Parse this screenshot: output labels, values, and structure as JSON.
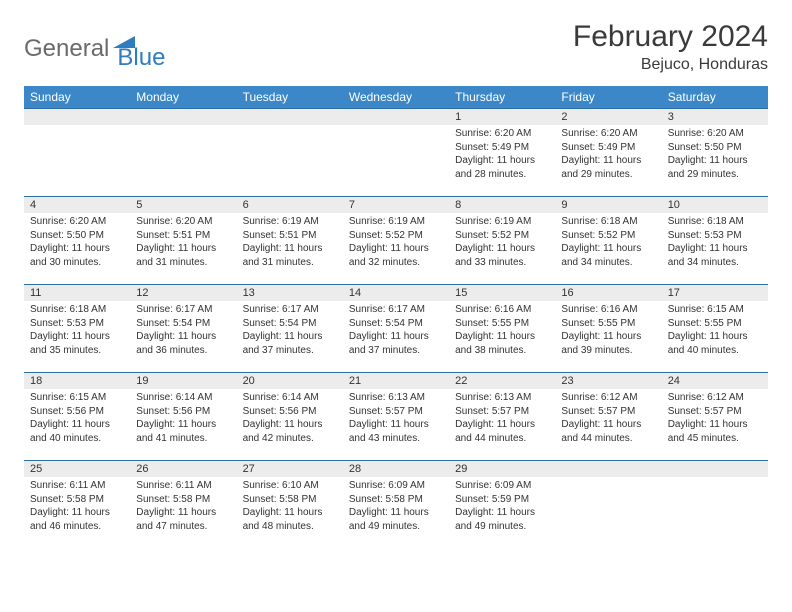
{
  "logo": {
    "text1": "General",
    "text2": "Blue"
  },
  "title": "February 2024",
  "location": "Bejuco, Honduras",
  "colors": {
    "header_bg": "#3b87c8",
    "header_text": "#ffffff",
    "row_divider": "#2d6da3",
    "daynum_bg": "#ececec",
    "text": "#333333",
    "logo_gray": "#6a6a6a",
    "logo_blue": "#2d7dc0",
    "page_bg": "#ffffff"
  },
  "typography": {
    "title_fontsize": 30,
    "location_fontsize": 16,
    "header_fontsize": 12,
    "daynum_fontsize": 11,
    "body_fontsize": 10
  },
  "weekdays": [
    "Sunday",
    "Monday",
    "Tuesday",
    "Wednesday",
    "Thursday",
    "Friday",
    "Saturday"
  ],
  "weeks": [
    [
      {
        "empty": true
      },
      {
        "empty": true
      },
      {
        "empty": true
      },
      {
        "empty": true
      },
      {
        "num": "1",
        "sunrise": "Sunrise: 6:20 AM",
        "sunset": "Sunset: 5:49 PM",
        "daylight": "Daylight: 11 hours and 28 minutes."
      },
      {
        "num": "2",
        "sunrise": "Sunrise: 6:20 AM",
        "sunset": "Sunset: 5:49 PM",
        "daylight": "Daylight: 11 hours and 29 minutes."
      },
      {
        "num": "3",
        "sunrise": "Sunrise: 6:20 AM",
        "sunset": "Sunset: 5:50 PM",
        "daylight": "Daylight: 11 hours and 29 minutes."
      }
    ],
    [
      {
        "num": "4",
        "sunrise": "Sunrise: 6:20 AM",
        "sunset": "Sunset: 5:50 PM",
        "daylight": "Daylight: 11 hours and 30 minutes."
      },
      {
        "num": "5",
        "sunrise": "Sunrise: 6:20 AM",
        "sunset": "Sunset: 5:51 PM",
        "daylight": "Daylight: 11 hours and 31 minutes."
      },
      {
        "num": "6",
        "sunrise": "Sunrise: 6:19 AM",
        "sunset": "Sunset: 5:51 PM",
        "daylight": "Daylight: 11 hours and 31 minutes."
      },
      {
        "num": "7",
        "sunrise": "Sunrise: 6:19 AM",
        "sunset": "Sunset: 5:52 PM",
        "daylight": "Daylight: 11 hours and 32 minutes."
      },
      {
        "num": "8",
        "sunrise": "Sunrise: 6:19 AM",
        "sunset": "Sunset: 5:52 PM",
        "daylight": "Daylight: 11 hours and 33 minutes."
      },
      {
        "num": "9",
        "sunrise": "Sunrise: 6:18 AM",
        "sunset": "Sunset: 5:52 PM",
        "daylight": "Daylight: 11 hours and 34 minutes."
      },
      {
        "num": "10",
        "sunrise": "Sunrise: 6:18 AM",
        "sunset": "Sunset: 5:53 PM",
        "daylight": "Daylight: 11 hours and 34 minutes."
      }
    ],
    [
      {
        "num": "11",
        "sunrise": "Sunrise: 6:18 AM",
        "sunset": "Sunset: 5:53 PM",
        "daylight": "Daylight: 11 hours and 35 minutes."
      },
      {
        "num": "12",
        "sunrise": "Sunrise: 6:17 AM",
        "sunset": "Sunset: 5:54 PM",
        "daylight": "Daylight: 11 hours and 36 minutes."
      },
      {
        "num": "13",
        "sunrise": "Sunrise: 6:17 AM",
        "sunset": "Sunset: 5:54 PM",
        "daylight": "Daylight: 11 hours and 37 minutes."
      },
      {
        "num": "14",
        "sunrise": "Sunrise: 6:17 AM",
        "sunset": "Sunset: 5:54 PM",
        "daylight": "Daylight: 11 hours and 37 minutes."
      },
      {
        "num": "15",
        "sunrise": "Sunrise: 6:16 AM",
        "sunset": "Sunset: 5:55 PM",
        "daylight": "Daylight: 11 hours and 38 minutes."
      },
      {
        "num": "16",
        "sunrise": "Sunrise: 6:16 AM",
        "sunset": "Sunset: 5:55 PM",
        "daylight": "Daylight: 11 hours and 39 minutes."
      },
      {
        "num": "17",
        "sunrise": "Sunrise: 6:15 AM",
        "sunset": "Sunset: 5:55 PM",
        "daylight": "Daylight: 11 hours and 40 minutes."
      }
    ],
    [
      {
        "num": "18",
        "sunrise": "Sunrise: 6:15 AM",
        "sunset": "Sunset: 5:56 PM",
        "daylight": "Daylight: 11 hours and 40 minutes."
      },
      {
        "num": "19",
        "sunrise": "Sunrise: 6:14 AM",
        "sunset": "Sunset: 5:56 PM",
        "daylight": "Daylight: 11 hours and 41 minutes."
      },
      {
        "num": "20",
        "sunrise": "Sunrise: 6:14 AM",
        "sunset": "Sunset: 5:56 PM",
        "daylight": "Daylight: 11 hours and 42 minutes."
      },
      {
        "num": "21",
        "sunrise": "Sunrise: 6:13 AM",
        "sunset": "Sunset: 5:57 PM",
        "daylight": "Daylight: 11 hours and 43 minutes."
      },
      {
        "num": "22",
        "sunrise": "Sunrise: 6:13 AM",
        "sunset": "Sunset: 5:57 PM",
        "daylight": "Daylight: 11 hours and 44 minutes."
      },
      {
        "num": "23",
        "sunrise": "Sunrise: 6:12 AM",
        "sunset": "Sunset: 5:57 PM",
        "daylight": "Daylight: 11 hours and 44 minutes."
      },
      {
        "num": "24",
        "sunrise": "Sunrise: 6:12 AM",
        "sunset": "Sunset: 5:57 PM",
        "daylight": "Daylight: 11 hours and 45 minutes."
      }
    ],
    [
      {
        "num": "25",
        "sunrise": "Sunrise: 6:11 AM",
        "sunset": "Sunset: 5:58 PM",
        "daylight": "Daylight: 11 hours and 46 minutes."
      },
      {
        "num": "26",
        "sunrise": "Sunrise: 6:11 AM",
        "sunset": "Sunset: 5:58 PM",
        "daylight": "Daylight: 11 hours and 47 minutes."
      },
      {
        "num": "27",
        "sunrise": "Sunrise: 6:10 AM",
        "sunset": "Sunset: 5:58 PM",
        "daylight": "Daylight: 11 hours and 48 minutes."
      },
      {
        "num": "28",
        "sunrise": "Sunrise: 6:09 AM",
        "sunset": "Sunset: 5:58 PM",
        "daylight": "Daylight: 11 hours and 49 minutes."
      },
      {
        "num": "29",
        "sunrise": "Sunrise: 6:09 AM",
        "sunset": "Sunset: 5:59 PM",
        "daylight": "Daylight: 11 hours and 49 minutes."
      },
      {
        "empty": true
      },
      {
        "empty": true
      }
    ]
  ]
}
